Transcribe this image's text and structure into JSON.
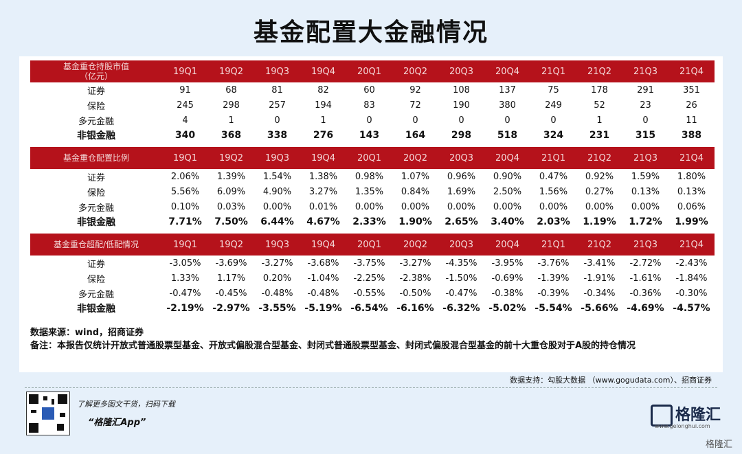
{
  "title": "基金配置大金融情况",
  "quarters": [
    "19Q1",
    "19Q2",
    "19Q3",
    "19Q4",
    "20Q1",
    "20Q2",
    "20Q3",
    "20Q4",
    "21Q1",
    "21Q2",
    "21Q3",
    "21Q4"
  ],
  "sections": [
    {
      "header": "基金重仓持股市值\n（亿元）",
      "rows": [
        {
          "label": "证券",
          "values": [
            "91",
            "68",
            "81",
            "82",
            "60",
            "92",
            "108",
            "137",
            "75",
            "178",
            "291",
            "351"
          ],
          "bold": false
        },
        {
          "label": "保险",
          "values": [
            "245",
            "298",
            "257",
            "194",
            "83",
            "72",
            "190",
            "380",
            "249",
            "52",
            "23",
            "26"
          ],
          "bold": false
        },
        {
          "label": "多元金融",
          "values": [
            "4",
            "1",
            "0",
            "1",
            "0",
            "0",
            "0",
            "0",
            "0",
            "1",
            "0",
            "11"
          ],
          "bold": false
        },
        {
          "label": "非银金融",
          "values": [
            "340",
            "368",
            "338",
            "276",
            "143",
            "164",
            "298",
            "518",
            "324",
            "231",
            "315",
            "388"
          ],
          "bold": true
        }
      ]
    },
    {
      "header": "基金重仓配置比例",
      "rows": [
        {
          "label": "证券",
          "values": [
            "2.06%",
            "1.39%",
            "1.54%",
            "1.38%",
            "0.98%",
            "1.07%",
            "0.96%",
            "0.90%",
            "0.47%",
            "0.92%",
            "1.59%",
            "1.80%"
          ],
          "bold": false
        },
        {
          "label": "保险",
          "values": [
            "5.56%",
            "6.09%",
            "4.90%",
            "3.27%",
            "1.35%",
            "0.84%",
            "1.69%",
            "2.50%",
            "1.56%",
            "0.27%",
            "0.13%",
            "0.13%"
          ],
          "bold": false
        },
        {
          "label": "多元金融",
          "values": [
            "0.10%",
            "0.03%",
            "0.00%",
            "0.01%",
            "0.00%",
            "0.00%",
            "0.00%",
            "0.00%",
            "0.00%",
            "0.00%",
            "0.00%",
            "0.06%"
          ],
          "bold": false
        },
        {
          "label": "非银金融",
          "values": [
            "7.71%",
            "7.50%",
            "6.44%",
            "4.67%",
            "2.33%",
            "1.90%",
            "2.65%",
            "3.40%",
            "2.03%",
            "1.19%",
            "1.72%",
            "1.99%"
          ],
          "bold": true
        }
      ]
    },
    {
      "header": "基金重仓超配/低配情况",
      "rows": [
        {
          "label": "证券",
          "values": [
            "-3.05%",
            "-3.69%",
            "-3.27%",
            "-3.68%",
            "-3.75%",
            "-3.27%",
            "-4.35%",
            "-3.95%",
            "-3.76%",
            "-3.41%",
            "-2.72%",
            "-2.43%"
          ],
          "bold": false
        },
        {
          "label": "保险",
          "values": [
            "1.33%",
            "1.17%",
            "0.20%",
            "-1.04%",
            "-2.25%",
            "-2.38%",
            "-1.50%",
            "-0.69%",
            "-1.39%",
            "-1.91%",
            "-1.61%",
            "-1.84%"
          ],
          "bold": false
        },
        {
          "label": "多元金融",
          "values": [
            "-0.47%",
            "-0.45%",
            "-0.48%",
            "-0.48%",
            "-0.55%",
            "-0.50%",
            "-0.47%",
            "-0.38%",
            "-0.39%",
            "-0.34%",
            "-0.36%",
            "-0.30%"
          ],
          "bold": false
        },
        {
          "label": "非银金融",
          "values": [
            "-2.19%",
            "-2.97%",
            "-3.55%",
            "-5.19%",
            "-6.54%",
            "-6.16%",
            "-6.32%",
            "-5.02%",
            "-5.54%",
            "-5.66%",
            "-4.69%",
            "-4.57%"
          ],
          "bold": true
        }
      ]
    }
  ],
  "source_note": "数据来源：wind，招商证券",
  "remark_note": "备注：本报告仅统计开放式普通股票型基金、开放式偏股混合型基金、封闭式普通股票型基金、封闭式偏股混合型基金的前十大重仓股对于A股的持仓情况",
  "data_support": "数据支持：勾股大数据 （www.gogudata.com）、招商证券",
  "promo_line1": "了解更多图文干货，扫码下载",
  "promo_line2": "“格隆汇App”",
  "logo_text": "格隆汇",
  "logo_sub": "www.gelonghui.com",
  "corner_watermark": "格隆汇"
}
